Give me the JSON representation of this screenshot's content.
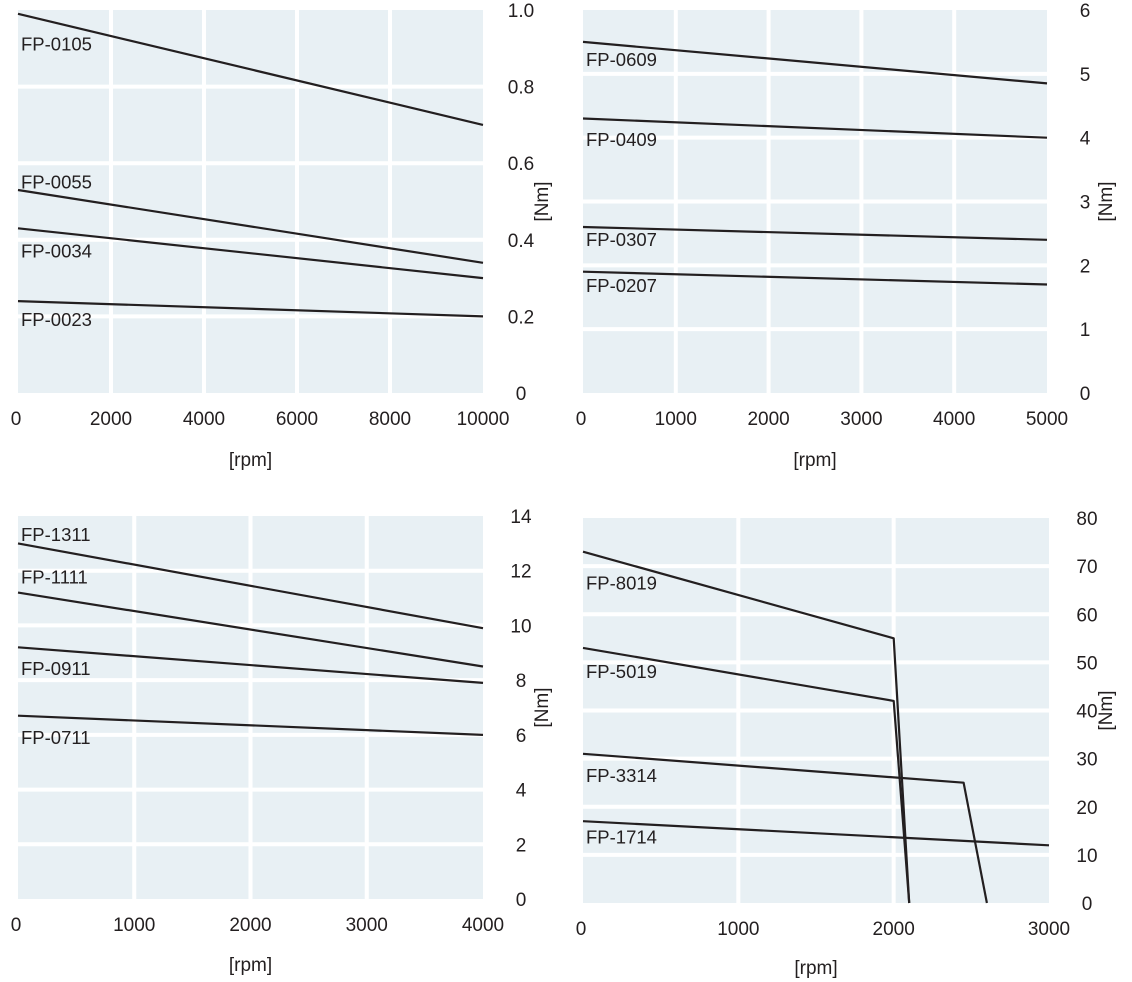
{
  "chart_data": [
    {
      "type": "line",
      "xlim": [
        0,
        10000
      ],
      "ylim": [
        0,
        1.0
      ],
      "x_ticks": [
        "0",
        "2000",
        "4000",
        "6000",
        "8000",
        "10000"
      ],
      "y_ticks": [
        "0",
        "0.2",
        "0.4",
        "0.6",
        "0.8",
        "1.0"
      ],
      "xlabel": "[rpm]",
      "ylabel": "[Nm]",
      "grid": true,
      "series": [
        {
          "name": "FP-0105",
          "x": [
            0,
            10000
          ],
          "y": [
            0.99,
            0.7
          ]
        },
        {
          "name": "FP-0055",
          "x": [
            0,
            10000
          ],
          "y": [
            0.53,
            0.34
          ]
        },
        {
          "name": "FP-0034",
          "x": [
            0,
            10000
          ],
          "y": [
            0.43,
            0.3
          ]
        },
        {
          "name": "FP-0023",
          "x": [
            0,
            10000
          ],
          "y": [
            0.24,
            0.2
          ]
        }
      ]
    },
    {
      "type": "line",
      "xlim": [
        0,
        5000
      ],
      "ylim": [
        0,
        6
      ],
      "x_ticks": [
        "0",
        "1000",
        "2000",
        "3000",
        "4000",
        "5000"
      ],
      "y_ticks": [
        "0",
        "1",
        "2",
        "3",
        "4",
        "5",
        "6"
      ],
      "xlabel": "[rpm]",
      "ylabel": "[Nm]",
      "grid": true,
      "series": [
        {
          "name": "FP-0609",
          "x": [
            0,
            5000
          ],
          "y": [
            5.5,
            4.85
          ]
        },
        {
          "name": "FP-0409",
          "x": [
            0,
            5000
          ],
          "y": [
            4.3,
            4.0
          ]
        },
        {
          "name": "FP-0307",
          "x": [
            0,
            5000
          ],
          "y": [
            2.6,
            2.4
          ]
        },
        {
          "name": "FP-0207",
          "x": [
            0,
            5000
          ],
          "y": [
            1.9,
            1.7
          ]
        }
      ]
    },
    {
      "type": "line",
      "xlim": [
        0,
        4000
      ],
      "ylim": [
        0,
        14
      ],
      "x_ticks": [
        "0",
        "1000",
        "2000",
        "3000",
        "4000"
      ],
      "y_ticks": [
        "0",
        "2",
        "4",
        "6",
        "8",
        "10",
        "12",
        "14"
      ],
      "xlabel": "[rpm]",
      "ylabel": "[Nm]",
      "grid": true,
      "series": [
        {
          "name": "FP-1311",
          "x": [
            0,
            4000
          ],
          "y": [
            13.0,
            9.9
          ]
        },
        {
          "name": "FP-1111",
          "x": [
            0,
            4000
          ],
          "y": [
            11.2,
            8.5
          ]
        },
        {
          "name": "FP-0911",
          "x": [
            0,
            4000
          ],
          "y": [
            9.2,
            7.9
          ]
        },
        {
          "name": "FP-0711",
          "x": [
            0,
            4000
          ],
          "y": [
            6.7,
            6.0
          ]
        }
      ]
    },
    {
      "type": "line",
      "xlim": [
        0,
        3000
      ],
      "ylim": [
        0,
        80
      ],
      "x_ticks": [
        "0",
        "1000",
        "2000",
        "3000"
      ],
      "y_ticks": [
        "0",
        "10",
        "20",
        "30",
        "40",
        "50",
        "60",
        "70",
        "80"
      ],
      "xlabel": "[rpm]",
      "ylabel": "[Nm]",
      "grid": true,
      "series": [
        {
          "name": "FP-8019",
          "x": [
            0,
            2000,
            2100
          ],
          "y": [
            73,
            55,
            0
          ]
        },
        {
          "name": "FP-5019",
          "x": [
            0,
            2000,
            2100
          ],
          "y": [
            53,
            42,
            0
          ]
        },
        {
          "name": "FP-3314",
          "x": [
            0,
            2450,
            2600
          ],
          "y": [
            31,
            25,
            0
          ]
        },
        {
          "name": "FP-1714",
          "x": [
            0,
            3000
          ],
          "y": [
            17,
            12
          ]
        }
      ]
    }
  ]
}
